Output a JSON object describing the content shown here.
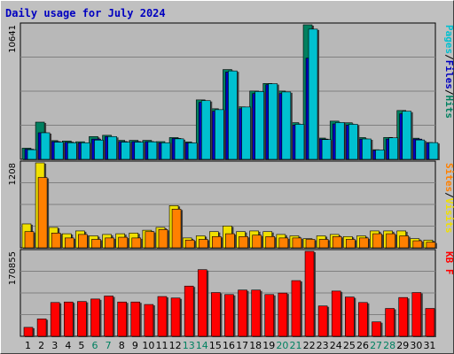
{
  "chart_data": {
    "title": "Daily usage for July 2024",
    "days": [
      "1",
      "2",
      "3",
      "4",
      "5",
      "6",
      "7",
      "8",
      "9",
      "10",
      "11",
      "12",
      "13",
      "14",
      "15",
      "16",
      "17",
      "18",
      "19",
      "20",
      "21",
      "22",
      "23",
      "24",
      "25",
      "26",
      "27",
      "28",
      "29",
      "30",
      "31"
    ],
    "weekend_days": [
      "6",
      "7",
      "13",
      "14",
      "20",
      "21",
      "27",
      "28"
    ],
    "panels": [
      {
        "type": "bar",
        "max_label": "10641",
        "ymax": 10641,
        "legend": [
          {
            "text": "Pages",
            "color": "#00c0d0"
          },
          {
            "text": "/",
            "color": "#000000"
          },
          {
            "text": "Files",
            "color": "#0000c0"
          },
          {
            "text": "/",
            "color": "#000000"
          },
          {
            "text": "Hits",
            "color": "#008060"
          }
        ],
        "series": [
          {
            "name": "Hits",
            "color": "#008060",
            "values": [
              880,
              2940,
              1480,
              1450,
              1390,
              1800,
              1900,
              1500,
              1500,
              1500,
              1400,
              1720,
              1380,
              4700,
              4000,
              7100,
              4150,
              5400,
              6000,
              5400,
              2900,
              10641,
              1680,
              3020,
              2890,
              1720,
              760,
              1730,
              3860,
              1670,
              1330
            ]
          },
          {
            "name": "Files",
            "color": "#0000c0",
            "values": [
              800,
              2100,
              1400,
              1350,
              1300,
              1600,
              1800,
              1400,
              1400,
              1400,
              1300,
              1650,
              1300,
              4500,
              3800,
              6900,
              4000,
              5200,
              5900,
              5200,
              2700,
              8000,
              1600,
              2800,
              2700,
              1600,
              700,
              1600,
              3600,
              1600,
              1300
            ]
          },
          {
            "name": "Pages",
            "color": "#00c0d0",
            "values": [
              760,
              2100,
              1360,
              1310,
              1310,
              1520,
              1800,
              1360,
              1360,
              1380,
              1310,
              1620,
              1300,
              4640,
              3930,
              6990,
              4140,
              5360,
              5980,
              5330,
              2770,
              10300,
              1560,
              2910,
              2770,
              1610,
              740,
              1700,
              3800,
              1530,
              1320
            ]
          }
        ]
      },
      {
        "type": "bar",
        "max_label": "1208",
        "ymax": 1208,
        "legend": [
          {
            "text": "Sites",
            "color": "#ff8000"
          },
          {
            "text": "/",
            "color": "#000000"
          },
          {
            "text": "Visits",
            "color": "#f0e000"
          }
        ],
        "series": [
          {
            "name": "Visits",
            "color": "#f0e000",
            "values": [
              340,
              1208,
              290,
              200,
              240,
              170,
              190,
              200,
              210,
              250,
              290,
              600,
              140,
              170,
              230,
              310,
              230,
              240,
              230,
              190,
              170,
              130,
              170,
              190,
              160,
              170,
              240,
              240,
              240,
              130,
              110
            ]
          },
          {
            "name": "Sites",
            "color": "#ff8000",
            "values": [
              230,
              1000,
              210,
              140,
              190,
              120,
              140,
              150,
              140,
              230,
              260,
              550,
              110,
              120,
              160,
              200,
              160,
              180,
              160,
              140,
              140,
              120,
              120,
              160,
              120,
              140,
              200,
              200,
              170,
              100,
              80
            ]
          }
        ]
      },
      {
        "type": "bar",
        "max_label": "170855",
        "ymax": 170855,
        "legend": [
          {
            "text": "KB F",
            "color": "#ff0000"
          }
        ],
        "series": [
          {
            "name": "KB F",
            "color": "#ff0000",
            "values": [
              18000,
              35000,
              68000,
              69000,
              70000,
              75000,
              81000,
              69000,
              69000,
              64000,
              80000,
              77000,
              101000,
              134000,
              88000,
              84000,
              93000,
              93000,
              84000,
              87000,
              112000,
              170855,
              61000,
              91000,
              79000,
              68000,
              29000,
              56000,
              78000,
              88000,
              56000
            ]
          }
        ]
      }
    ]
  }
}
